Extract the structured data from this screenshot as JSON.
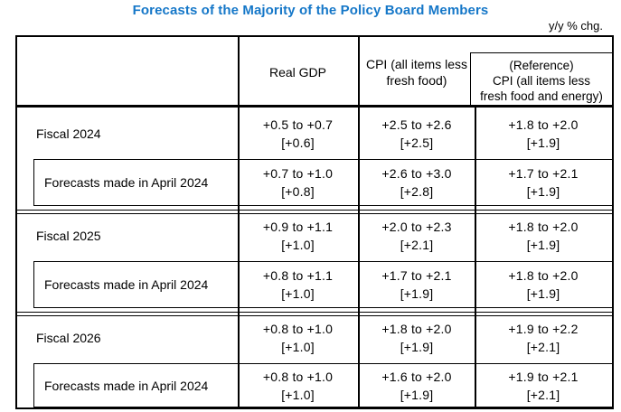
{
  "title": "Forecasts of the Majority of the Policy Board Members",
  "unit_note": "y/y % chg.",
  "colors": {
    "title_blue": "#1577c8",
    "table_border": "#000000"
  },
  "table": {
    "header": {
      "real_gdp": "Real GDP",
      "cpi_line1": "CPI (all items less",
      "cpi_line2": "fresh food)",
      "reference_line1": "(Reference)",
      "reference_line2": "CPI (all items less",
      "reference_line3": "fresh food and energy)"
    },
    "groups": [
      {
        "fiscal": {
          "label": "Fiscal 2024",
          "gdp_range": "+0.5 to +0.7",
          "gdp_median": "[+0.6]",
          "cpi_range": "+2.5 to +2.6",
          "cpi_median": "[+2.5]",
          "ref_range": "+1.8 to +2.0",
          "ref_median": "[+1.9]"
        },
        "april": {
          "label": "Forecasts made in April 2024",
          "gdp_range": "+0.7 to +1.0",
          "gdp_median": "[+0.8]",
          "cpi_range": "+2.6 to +3.0",
          "cpi_median": "[+2.8]",
          "ref_range": "+1.7 to +2.1",
          "ref_median": "[+1.9]"
        }
      },
      {
        "fiscal": {
          "label": "Fiscal 2025",
          "gdp_range": "+0.9 to +1.1",
          "gdp_median": "[+1.0]",
          "cpi_range": "+2.0 to +2.3",
          "cpi_median": "[+2.1]",
          "ref_range": "+1.8 to +2.0",
          "ref_median": "[+1.9]"
        },
        "april": {
          "label": "Forecasts made in April 2024",
          "gdp_range": "+0.8 to +1.1",
          "gdp_median": "[+1.0]",
          "cpi_range": "+1.7 to +2.1",
          "cpi_median": "[+1.9]",
          "ref_range": "+1.8 to +2.0",
          "ref_median": "[+1.9]"
        }
      },
      {
        "fiscal": {
          "label": "Fiscal 2026",
          "gdp_range": "+0.8 to +1.0",
          "gdp_median": "[+1.0]",
          "cpi_range": "+1.8 to +2.0",
          "cpi_median": "[+1.9]",
          "ref_range": "+1.9 to +2.2",
          "ref_median": "[+2.1]"
        },
        "april": {
          "label": "Forecasts made in April 2024",
          "gdp_range": "+0.8 to +1.0",
          "gdp_median": "[+1.0]",
          "cpi_range": "+1.6 to +2.0",
          "cpi_median": "[+1.9]",
          "ref_range": "+1.9 to +2.1",
          "ref_median": "[+2.1]"
        }
      }
    ]
  }
}
